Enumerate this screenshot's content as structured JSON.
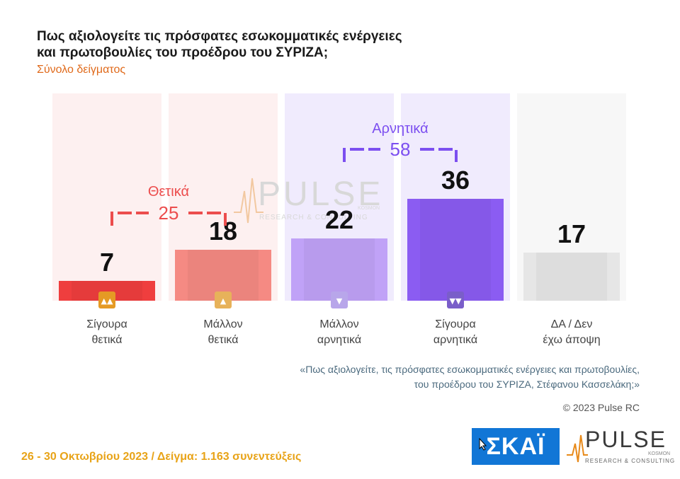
{
  "header": {
    "title_line1": "Πως αξιολογείτε τις πρόσφατες εσωκομματικές ενέργειες",
    "title_line2": "και πρωτοβουλίες του προέδρου του ΣΥΡΙΖΑ;",
    "subtitle": "Σύνολο δείγματος"
  },
  "watermark": {
    "name": "PULSE",
    "sub": "RESEARCH & CONSULTING",
    "small": "KOSMON"
  },
  "chart_data": {
    "type": "bar",
    "categories": [
      [
        "Σίγουρα",
        "θετικά"
      ],
      [
        "Μάλλον",
        "θετικά"
      ],
      [
        "Μάλλον",
        "αρνητικά"
      ],
      [
        "Σίγουρα",
        "αρνητικά"
      ],
      [
        "ΔΑ / Δεν",
        "έχω άποψη"
      ]
    ],
    "values": [
      7,
      18,
      22,
      36,
      17
    ],
    "colors": [
      "#ef3e3e",
      "#f58a83",
      "#c0a2f7",
      "#8b5cf2",
      "#e6e6e6"
    ],
    "column_bg": [
      "#fdf0f0",
      "#fdf0f0",
      "#f0ebfd",
      "#f0ebfd",
      "#f7f7f7"
    ],
    "icons": [
      "double-thumbs-up",
      "thumbs-up",
      "thumbs-down",
      "double-thumbs-down",
      ""
    ],
    "icon_colors": [
      "#e59a24",
      "#e7b25a",
      "#b8a6ea",
      "#7a5ec9",
      ""
    ],
    "groups": [
      {
        "label": "Θετικά",
        "value": "25",
        "color": "#ec4d4d"
      },
      {
        "label": "Αρνητικά",
        "value": "58",
        "color": "#7c4ff0"
      }
    ]
  },
  "note": {
    "line1": "«Πως αξιολογείτε, τις πρόσφατες εσωκομματικές ενέργειες και πρωτοβουλίες,",
    "line2": "του προέδρου του ΣΥΡΙΖΑ, Στέφανου Κασσελάκη;»"
  },
  "copyright": "© 2023 Pulse RC",
  "footer": "26 - 30  Οκτωβρίου  2023  /  Δείγμα:  1.163 συνεντεύξεις",
  "logos": {
    "skai": "ΣΚΑΪ",
    "pulse_name": "PULSE",
    "pulse_small": "KOSMON",
    "pulse_sub": "RESEARCH & CONSULTING"
  }
}
